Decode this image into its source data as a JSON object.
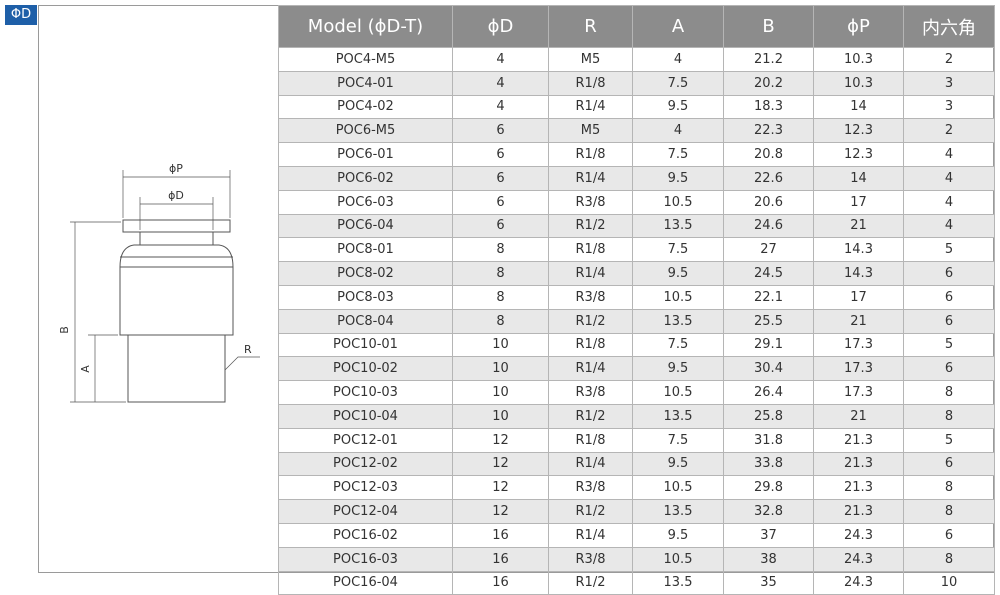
{
  "badge": "ΦD",
  "drawing": {
    "labels": {
      "phi_p": "ϕP",
      "phi_d": "ϕD",
      "b": "B",
      "a": "A",
      "r": "R"
    }
  },
  "table": {
    "header": [
      "Model (ϕD-T)",
      "ϕD",
      "R",
      "A",
      "B",
      "ϕP",
      "内六角"
    ],
    "rows": [
      [
        "POC4-M5",
        "4",
        "M5",
        "4",
        "21.2",
        "10.3",
        "2"
      ],
      [
        "POC4-01",
        "4",
        "R1/8",
        "7.5",
        "20.2",
        "10.3",
        "3"
      ],
      [
        "POC4-02",
        "4",
        "R1/4",
        "9.5",
        "18.3",
        "14",
        "3"
      ],
      [
        "POC6-M5",
        "6",
        "M5",
        "4",
        "22.3",
        "12.3",
        "2"
      ],
      [
        "POC6-01",
        "6",
        "R1/8",
        "7.5",
        "20.8",
        "12.3",
        "4"
      ],
      [
        "POC6-02",
        "6",
        "R1/4",
        "9.5",
        "22.6",
        "14",
        "4"
      ],
      [
        "POC6-03",
        "6",
        "R3/8",
        "10.5",
        "20.6",
        "17",
        "4"
      ],
      [
        "POC6-04",
        "6",
        "R1/2",
        "13.5",
        "24.6",
        "21",
        "4"
      ],
      [
        "POC8-01",
        "8",
        "R1/8",
        "7.5",
        "27",
        "14.3",
        "5"
      ],
      [
        "POC8-02",
        "8",
        "R1/4",
        "9.5",
        "24.5",
        "14.3",
        "6"
      ],
      [
        "POC8-03",
        "8",
        "R3/8",
        "10.5",
        "22.1",
        "17",
        "6"
      ],
      [
        "POC8-04",
        "8",
        "R1/2",
        "13.5",
        "25.5",
        "21",
        "6"
      ],
      [
        "POC10-01",
        "10",
        "R1/8",
        "7.5",
        "29.1",
        "17.3",
        "5"
      ],
      [
        "POC10-02",
        "10",
        "R1/4",
        "9.5",
        "30.4",
        "17.3",
        "6"
      ],
      [
        "POC10-03",
        "10",
        "R3/8",
        "10.5",
        "26.4",
        "17.3",
        "8"
      ],
      [
        "POC10-04",
        "10",
        "R1/2",
        "13.5",
        "25.8",
        "21",
        "8"
      ],
      [
        "POC12-01",
        "12",
        "R1/8",
        "7.5",
        "31.8",
        "21.3",
        "5"
      ],
      [
        "POC12-02",
        "12",
        "R1/4",
        "9.5",
        "33.8",
        "21.3",
        "6"
      ],
      [
        "POC12-03",
        "12",
        "R3/8",
        "10.5",
        "29.8",
        "21.3",
        "8"
      ],
      [
        "POC12-04",
        "12",
        "R1/2",
        "13.5",
        "32.8",
        "21.3",
        "8"
      ],
      [
        "POC16-02",
        "16",
        "R1/4",
        "9.5",
        "37",
        "24.3",
        "6"
      ],
      [
        "POC16-03",
        "16",
        "R3/8",
        "10.5",
        "38",
        "24.3",
        "8"
      ],
      [
        "POC16-04",
        "16",
        "R1/2",
        "13.5",
        "35",
        "24.3",
        "10"
      ]
    ]
  }
}
